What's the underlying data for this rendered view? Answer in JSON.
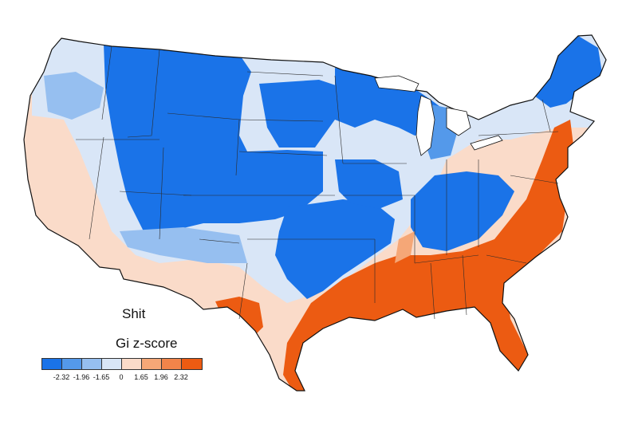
{
  "map": {
    "title": "Shit",
    "legend_title": "Gi z-score",
    "legend": {
      "colors": [
        "#1a73e8",
        "#5499ea",
        "#96bff0",
        "#d9e6f7",
        "#fadbc9",
        "#f5a777",
        "#f2844a",
        "#ec5b12"
      ],
      "ticks": [
        "-2.32",
        "-1.96",
        "-1.65",
        "0",
        "1.65",
        "1.96",
        "2.32"
      ]
    }
  }
}
